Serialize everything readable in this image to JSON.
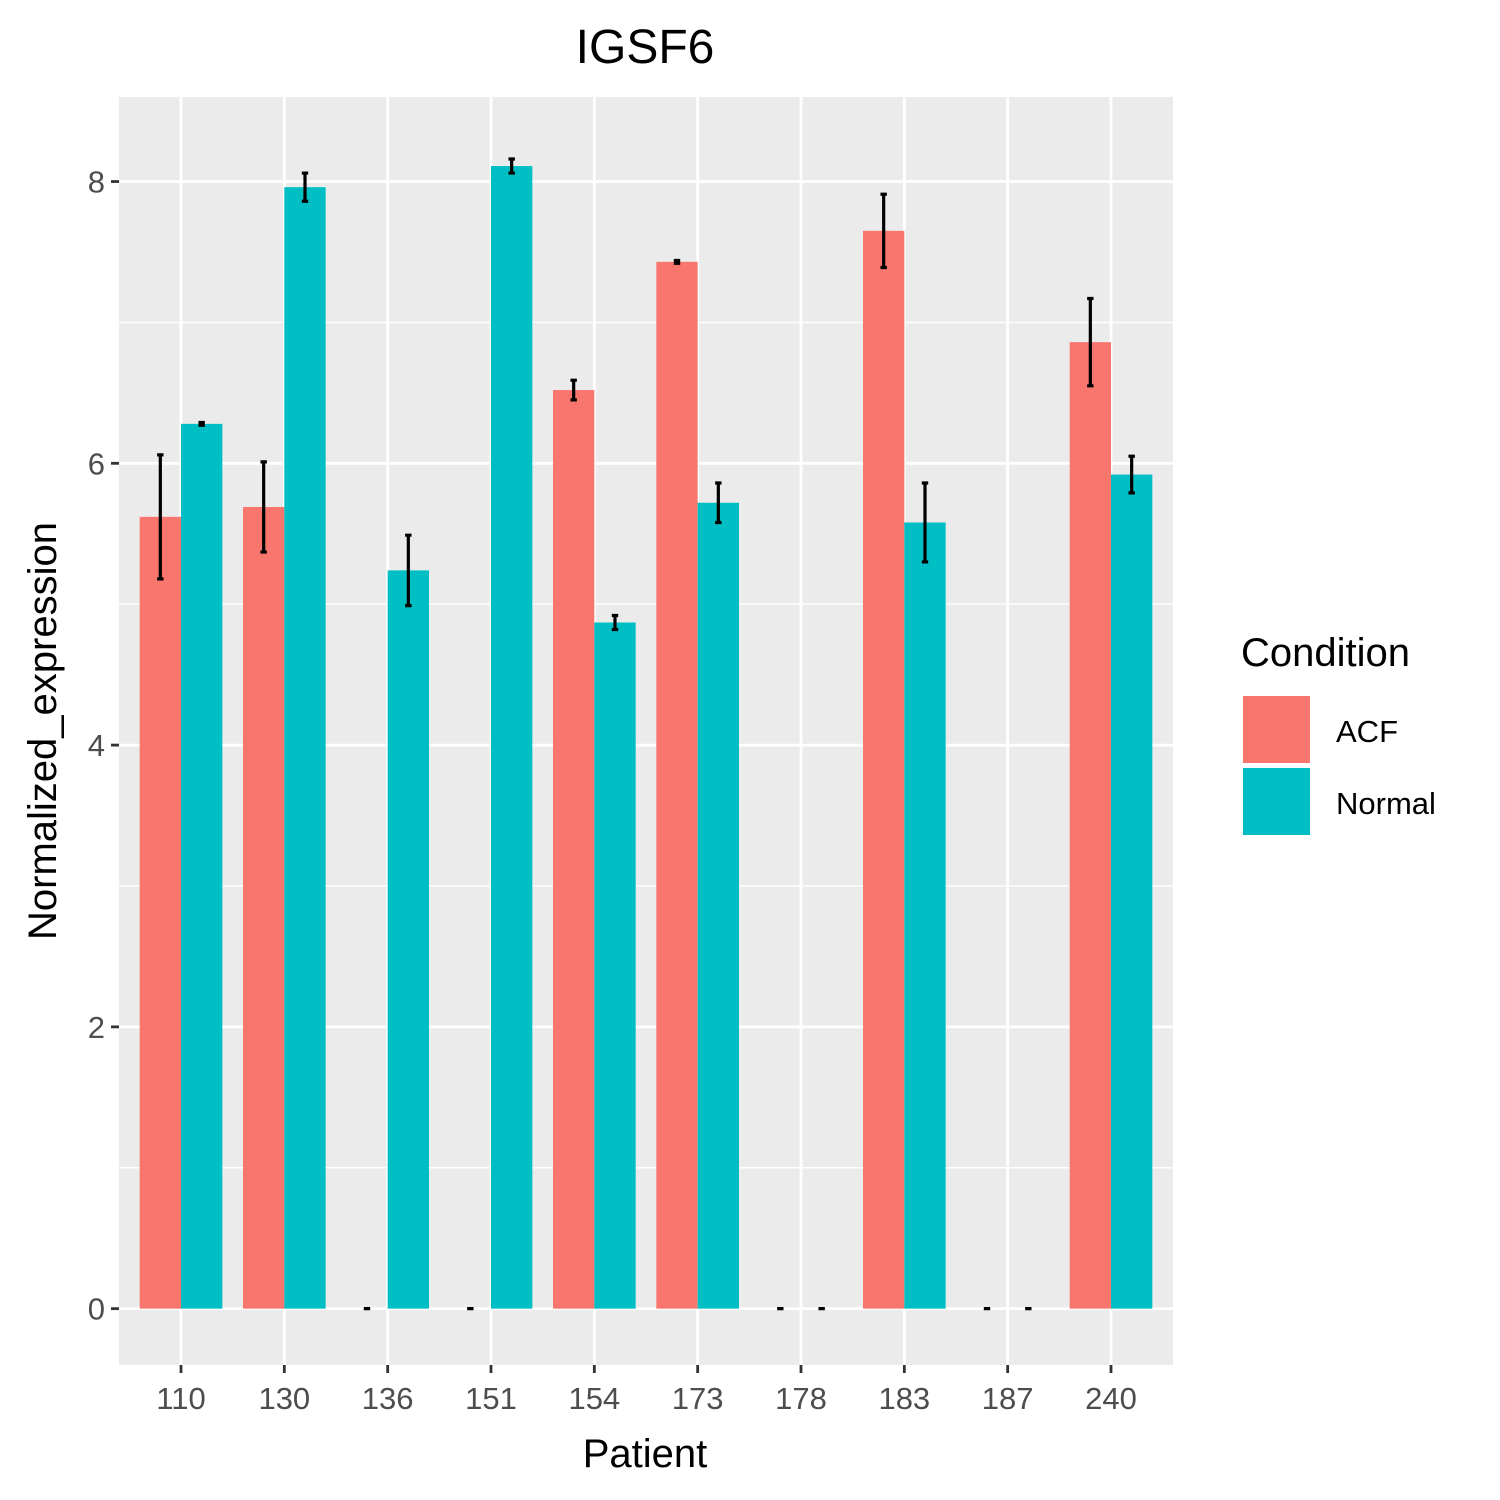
{
  "chart_data": {
    "type": "bar",
    "title": "IGSF6",
    "xlabel": "Patient",
    "ylabel": "Normalized_expression",
    "categories": [
      "110",
      "130",
      "136",
      "151",
      "154",
      "173",
      "178",
      "183",
      "187",
      "240"
    ],
    "ylim": [
      -0.4,
      8.6
    ],
    "yticks": [
      "0",
      "2",
      "4",
      "6",
      "8"
    ],
    "grid": true,
    "legend": {
      "title": "Condition",
      "position": "right"
    },
    "series": [
      {
        "name": "ACF",
        "color": "#F8766D",
        "values": [
          5.62,
          5.69,
          0,
          0,
          6.52,
          7.43,
          0,
          7.65,
          0,
          6.86
        ],
        "errors": [
          0.44,
          0.32,
          0,
          0,
          0.07,
          0.01,
          0,
          0.26,
          0,
          0.31
        ]
      },
      {
        "name": "Normal",
        "color": "#00BFC4",
        "values": [
          6.28,
          7.96,
          5.24,
          8.11,
          4.87,
          5.72,
          0,
          5.58,
          0,
          5.92
        ],
        "errors": [
          0.01,
          0.1,
          0.25,
          0.05,
          0.05,
          0.14,
          0,
          0.28,
          0,
          0.13
        ]
      }
    ]
  }
}
